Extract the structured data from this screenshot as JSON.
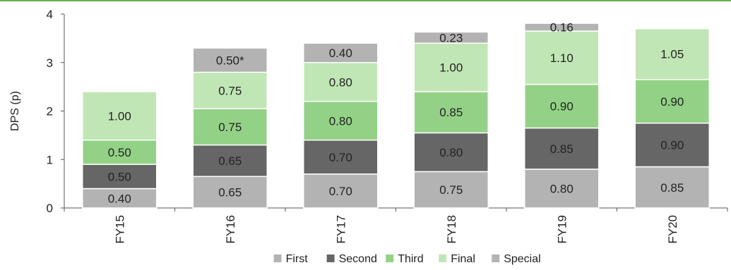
{
  "chart_data": {
    "type": "bar",
    "stacked": true,
    "categories": [
      "FY15",
      "FY16",
      "FY17",
      "FY18",
      "FY19",
      "FY20"
    ],
    "series": [
      {
        "name": "First",
        "color": "#b3b3b3",
        "values": [
          0.4,
          0.65,
          0.7,
          0.75,
          0.8,
          0.85
        ],
        "labels": [
          "0.40",
          "0.65",
          "0.70",
          "0.75",
          "0.80",
          "0.85"
        ]
      },
      {
        "name": "Second",
        "color": "#666666",
        "values": [
          0.5,
          0.65,
          0.7,
          0.8,
          0.85,
          0.9
        ],
        "labels": [
          "0.50",
          "0.65",
          "0.70",
          "0.80",
          "0.85",
          "0.90"
        ]
      },
      {
        "name": "Third",
        "color": "#93d286",
        "values": [
          0.5,
          0.75,
          0.8,
          0.85,
          0.9,
          0.9
        ],
        "labels": [
          "0.50",
          "0.75",
          "0.80",
          "0.85",
          "0.90",
          "0.90"
        ]
      },
      {
        "name": "Final",
        "color": "#c1e6b5",
        "values": [
          1.0,
          0.75,
          0.8,
          1.0,
          1.1,
          1.05
        ],
        "labels": [
          "1.00",
          "0.75",
          "0.80",
          "1.00",
          "1.10",
          "1.05"
        ]
      },
      {
        "name": "Special",
        "color": "#b3b3b3",
        "values": [
          0,
          0.5,
          0.4,
          0.23,
          0.16,
          0
        ],
        "labels": [
          "",
          "0.50*",
          "0.40",
          "0.23",
          "0.16",
          ""
        ]
      }
    ],
    "ylabel": "DPS (p)",
    "xlabel": "",
    "ylim": [
      0,
      4
    ],
    "yticks": [
      0,
      1,
      2,
      3,
      4
    ],
    "grid": false,
    "legend_position": "bottom-center"
  }
}
